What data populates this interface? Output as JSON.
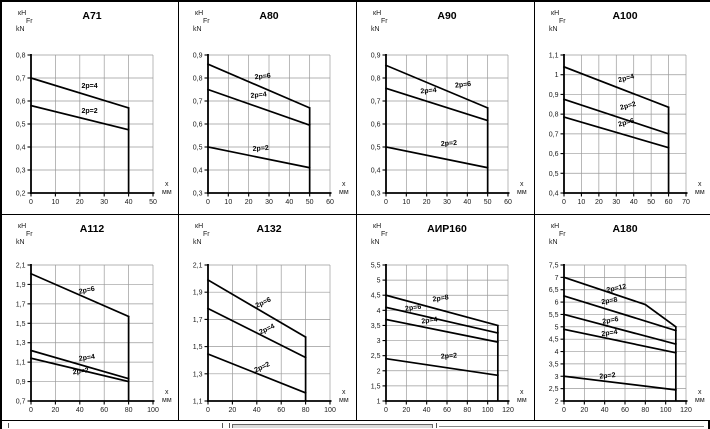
{
  "page": {
    "background": "#ffffff",
    "table_border_color": "#000000",
    "grid_line_color": "#9a9a9a",
    "curve_color": "#000000"
  },
  "axis_units": {
    "force": [
      "кН",
      "Fr",
      "kN"
    ],
    "x": [
      "x",
      "мм"
    ]
  },
  "chart_data": [
    {
      "type": "line",
      "title": "А71",
      "xlabel": "x, мм",
      "ylabel": "Fr, кН (kN)",
      "xlim": [
        0,
        50
      ],
      "ylim": [
        0.2,
        0.8
      ],
      "grid": true,
      "xticks": [
        0,
        10,
        20,
        30,
        40,
        50
      ],
      "xtick_labels": [
        "0",
        "10",
        "20",
        "30",
        "40",
        "50"
      ],
      "yticks": [
        0.2,
        0.3,
        0.4,
        0.5,
        0.6,
        0.7,
        0.8
      ],
      "ytick_labels": [
        "0,2",
        "0,3",
        "0,4",
        "0,5",
        "0,6",
        "0,7",
        "0,8"
      ],
      "boundary": {
        "x": 40,
        "y_from": 0.57,
        "y_to": 0.2
      },
      "series": [
        {
          "name": "2p=4",
          "points": [
            [
              0,
              0.7
            ],
            [
              40,
              0.57
            ]
          ],
          "label": {
            "x": 24,
            "y": 0.657,
            "rotation": 0
          }
        },
        {
          "name": "2p=2",
          "points": [
            [
              0,
              0.58
            ],
            [
              40,
              0.475
            ]
          ],
          "label": {
            "x": 24,
            "y": 0.548,
            "rotation": 0
          }
        }
      ]
    },
    {
      "type": "line",
      "title": "А80",
      "xlabel": "x, мм",
      "ylabel": "Fr, кН (kN)",
      "xlim": [
        0,
        60
      ],
      "ylim": [
        0.3,
        0.9
      ],
      "grid": true,
      "xticks": [
        0,
        10,
        20,
        30,
        40,
        50,
        60
      ],
      "xtick_labels": [
        "0",
        "10",
        "20",
        "30",
        "40",
        "50",
        "60"
      ],
      "yticks": [
        0.3,
        0.4,
        0.5,
        0.6,
        0.7,
        0.8,
        0.9
      ],
      "ytick_labels": [
        "0,3",
        "0,4",
        "0,5",
        "0,6",
        "0,7",
        "0,8",
        "0,9"
      ],
      "boundary": {
        "x": 50,
        "y_from": 0.67,
        "y_to": 0.3
      },
      "series": [
        {
          "name": "2p=6",
          "points": [
            [
              0,
              0.86
            ],
            [
              50,
              0.67
            ]
          ],
          "label": {
            "x": 27,
            "y": 0.798,
            "rotation": -6
          }
        },
        {
          "name": "2p=4",
          "points": [
            [
              0,
              0.75
            ],
            [
              50,
              0.595
            ]
          ],
          "label": {
            "x": 25,
            "y": 0.717,
            "rotation": -6
          }
        },
        {
          "name": "2p=2",
          "points": [
            [
              0,
              0.5
            ],
            [
              50,
              0.41
            ]
          ],
          "label": {
            "x": 26,
            "y": 0.485,
            "rotation": -4
          }
        }
      ]
    },
    {
      "type": "line",
      "title": "А90",
      "xlabel": "x, мм",
      "ylabel": "Fr, кН (kN)",
      "xlim": [
        0,
        60
      ],
      "ylim": [
        0.3,
        0.9
      ],
      "grid": true,
      "xticks": [
        0,
        10,
        20,
        30,
        40,
        50,
        60
      ],
      "xtick_labels": [
        "0",
        "10",
        "20",
        "30",
        "40",
        "50",
        "60"
      ],
      "yticks": [
        0.3,
        0.4,
        0.5,
        0.6,
        0.7,
        0.8,
        0.9
      ],
      "ytick_labels": [
        "0,3",
        "0,4",
        "0,5",
        "0,6",
        "0,7",
        "0,8",
        "0,9"
      ],
      "boundary": {
        "x": 50,
        "y_from": 0.67,
        "y_to": 0.3
      },
      "series": [
        {
          "name": "2p=6",
          "points": [
            [
              0,
              0.855
            ],
            [
              50,
              0.67
            ]
          ],
          "label": {
            "x": 38,
            "y": 0.762,
            "rotation": -6
          }
        },
        {
          "name": "2p=4",
          "points": [
            [
              0,
              0.755
            ],
            [
              50,
              0.615
            ]
          ],
          "label": {
            "x": 21,
            "y": 0.736,
            "rotation": -5
          }
        },
        {
          "name": "2p=2",
          "points": [
            [
              0,
              0.5
            ],
            [
              50,
              0.41
            ]
          ],
          "label": {
            "x": 31,
            "y": 0.507,
            "rotation": -4
          }
        }
      ]
    },
    {
      "type": "line",
      "title": "А100",
      "xlabel": "x, мм",
      "ylabel": "Fr, кН (kN)",
      "xlim": [
        0,
        70
      ],
      "ylim": [
        0.4,
        1.1
      ],
      "grid": true,
      "xticks": [
        0,
        10,
        20,
        30,
        40,
        50,
        60,
        70
      ],
      "xtick_labels": [
        "0",
        "10",
        "20",
        "30",
        "40",
        "50",
        "60",
        "70"
      ],
      "yticks": [
        0.4,
        0.5,
        0.6,
        0.7,
        0.8,
        0.9,
        1.0,
        1.1
      ],
      "ytick_labels": [
        "0,4",
        "0,5",
        "0,6",
        "0,7",
        "0,8",
        "0,9",
        "1",
        "1,1"
      ],
      "boundary": {
        "x": 60,
        "y_from": 0.835,
        "y_to": 0.4
      },
      "series": [
        {
          "name": "2p=4",
          "points": [
            [
              0,
              1.04
            ],
            [
              60,
              0.835
            ]
          ],
          "label": {
            "x": 36,
            "y": 0.972,
            "rotation": -15
          }
        },
        {
          "name": "2p=2",
          "points": [
            [
              0,
              0.875
            ],
            [
              60,
              0.7
            ]
          ],
          "label": {
            "x": 37,
            "y": 0.832,
            "rotation": -15
          }
        },
        {
          "name": "2p=6",
          "points": [
            [
              0,
              0.785
            ],
            [
              60,
              0.63
            ]
          ],
          "label": {
            "x": 36,
            "y": 0.747,
            "rotation": -15
          }
        }
      ]
    },
    {
      "type": "line",
      "title": "А112",
      "xlabel": "x, мм",
      "ylabel": "Fr, кН (kN)",
      "xlim": [
        0,
        100
      ],
      "ylim": [
        0.7,
        2.1
      ],
      "grid": true,
      "xticks": [
        0,
        20,
        40,
        60,
        80,
        100
      ],
      "xtick_labels": [
        "0",
        "20",
        "40",
        "60",
        "80",
        "100"
      ],
      "yticks": [
        0.7,
        0.9,
        1.1,
        1.3,
        1.5,
        1.7,
        1.9,
        2.1
      ],
      "ytick_labels": [
        "0,7",
        "0,9",
        "1,1",
        "1,3",
        "1,5",
        "1,7",
        "1,9",
        "2,1"
      ],
      "boundary": {
        "x": 80,
        "y_from": 1.57,
        "y_to": 0.7
      },
      "series": [
        {
          "name": "2p=6",
          "points": [
            [
              0,
              2.01
            ],
            [
              80,
              1.57
            ]
          ],
          "label": {
            "x": 46,
            "y": 1.82,
            "rotation": -12
          }
        },
        {
          "name": "2p=4",
          "points": [
            [
              0,
              1.22
            ],
            [
              80,
              0.93
            ]
          ],
          "label": {
            "x": 46,
            "y": 1.125,
            "rotation": -8
          }
        },
        {
          "name": "2p=2",
          "points": [
            [
              0,
              1.14
            ],
            [
              80,
              0.9
            ]
          ],
          "label": {
            "x": 41,
            "y": 0.985,
            "rotation": -8
          }
        }
      ]
    },
    {
      "type": "line",
      "title": "А132",
      "xlabel": "x, мм",
      "ylabel": "Fr, кН (kN)",
      "xlim": [
        0,
        100
      ],
      "ylim": [
        1.1,
        2.1
      ],
      "grid": true,
      "xticks": [
        0,
        20,
        40,
        60,
        80,
        100
      ],
      "xtick_labels": [
        "0",
        "20",
        "40",
        "60",
        "80",
        "100"
      ],
      "yticks": [
        1.1,
        1.3,
        1.5,
        1.7,
        1.9,
        2.1
      ],
      "ytick_labels": [
        "1,1",
        "1,3",
        "1,5",
        "1,7",
        "1,9",
        "2,1"
      ],
      "boundary": {
        "x": 80,
        "y_from": 1.57,
        "y_to": 1.1
      },
      "series": [
        {
          "name": "2p=6",
          "points": [
            [
              0,
              1.99
            ],
            [
              80,
              1.57
            ]
          ],
          "label": {
            "x": 46,
            "y": 1.81,
            "rotation": -25
          }
        },
        {
          "name": "2p=4",
          "points": [
            [
              0,
              1.78
            ],
            [
              80,
              1.42
            ]
          ],
          "label": {
            "x": 49,
            "y": 1.615,
            "rotation": -25
          }
        },
        {
          "name": "2p=2",
          "points": [
            [
              0,
              1.445
            ],
            [
              80,
              1.16
            ]
          ],
          "label": {
            "x": 45,
            "y": 1.335,
            "rotation": -25
          }
        }
      ]
    },
    {
      "type": "line",
      "title": "АИР160",
      "xlabel": "x, мм",
      "ylabel": "Fr, кН (kN)",
      "xlim": [
        0,
        120
      ],
      "ylim": [
        1.0,
        5.5
      ],
      "grid": true,
      "xticks": [
        0,
        20,
        40,
        60,
        80,
        100,
        120
      ],
      "xtick_labels": [
        "0",
        "20",
        "40",
        "60",
        "80",
        "100",
        "120"
      ],
      "yticks": [
        1.0,
        1.5,
        2.0,
        2.5,
        3.0,
        3.5,
        4.0,
        4.5,
        5.0,
        5.5
      ],
      "ytick_labels": [
        "1",
        "1,5",
        "2",
        "2,5",
        "3",
        "3,5",
        "4",
        "4,5",
        "5",
        "5,5"
      ],
      "boundary": {
        "x": 110,
        "y_from": 3.5,
        "y_to": 1.0
      },
      "series": [
        {
          "name": "2p=8",
          "points": [
            [
              0,
              4.5
            ],
            [
              110,
              3.5
            ]
          ],
          "label": {
            "x": 54,
            "y": 4.33,
            "rotation": -8
          }
        },
        {
          "name": "2p=6",
          "points": [
            [
              0,
              4.1
            ],
            [
              110,
              3.25
            ]
          ],
          "label": {
            "x": 27,
            "y": 4.02,
            "rotation": -8
          }
        },
        {
          "name": "2p=4",
          "points": [
            [
              0,
              3.7
            ],
            [
              110,
              2.95
            ]
          ],
          "label": {
            "x": 43,
            "y": 3.6,
            "rotation": -8
          }
        },
        {
          "name": "2p=2",
          "points": [
            [
              0,
              2.4
            ],
            [
              110,
              1.85
            ]
          ],
          "label": {
            "x": 62,
            "y": 2.42,
            "rotation": -4
          }
        }
      ]
    },
    {
      "type": "line",
      "title": "А180",
      "xlabel": "x, мм",
      "ylabel": "Fr, кН (kN)",
      "xlim": [
        0,
        120
      ],
      "ylim": [
        2.0,
        7.5
      ],
      "grid": true,
      "xticks": [
        0,
        20,
        40,
        60,
        80,
        100,
        120
      ],
      "xtick_labels": [
        "0",
        "20",
        "40",
        "60",
        "80",
        "100",
        "120"
      ],
      "yticks": [
        2.0,
        2.5,
        3.0,
        3.5,
        4.0,
        4.5,
        5.0,
        5.5,
        6.0,
        6.5,
        7.0,
        7.5
      ],
      "ytick_labels": [
        "2",
        "2,5",
        "3",
        "3,5",
        "4",
        "4,5",
        "5",
        "5,5",
        "6",
        "6,5",
        "7",
        "7,5"
      ],
      "boundary": {
        "x": 110,
        "y_from": 5.0,
        "y_to": 2.0
      },
      "series": [
        {
          "name": "2p=12",
          "points": [
            [
              0,
              7.0
            ],
            [
              80,
              5.9
            ],
            [
              110,
              5.0
            ]
          ],
          "label": {
            "x": 52,
            "y": 6.48,
            "rotation": -12
          }
        },
        {
          "name": "2p=8",
          "points": [
            [
              0,
              6.25
            ],
            [
              110,
              4.85
            ]
          ],
          "label": {
            "x": 45,
            "y": 5.97,
            "rotation": -10
          }
        },
        {
          "name": "2p=6",
          "points": [
            [
              0,
              5.5
            ],
            [
              110,
              4.3
            ]
          ],
          "label": {
            "x": 46,
            "y": 5.18,
            "rotation": -10
          }
        },
        {
          "name": "2p=4",
          "points": [
            [
              0,
              4.9
            ],
            [
              110,
              3.95
            ]
          ],
          "label": {
            "x": 45,
            "y": 4.67,
            "rotation": -8
          }
        },
        {
          "name": "2p=2",
          "points": [
            [
              0,
              3.0
            ],
            [
              110,
              2.45
            ]
          ],
          "label": {
            "x": 43,
            "y": 2.94,
            "rotation": -6
          }
        }
      ]
    }
  ]
}
